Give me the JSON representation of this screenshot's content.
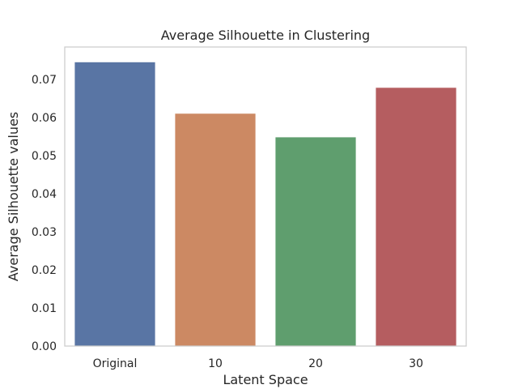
{
  "chart_data": {
    "type": "bar",
    "title": "Average Silhouette in Clustering",
    "xlabel": "Latent Space",
    "ylabel": "Average Silhouette values",
    "categories": [
      "Original",
      "10",
      "20",
      "30"
    ],
    "values": [
      0.0745,
      0.061,
      0.0548,
      0.0678
    ],
    "colors": [
      "#5975a4",
      "#cc8963",
      "#5f9e6e",
      "#b55d60"
    ],
    "ylim": [
      0,
      0.0785
    ],
    "yticks": [
      "0.00",
      "0.01",
      "0.02",
      "0.03",
      "0.04",
      "0.05",
      "0.06",
      "0.07"
    ],
    "grid": false,
    "legend": "none"
  }
}
